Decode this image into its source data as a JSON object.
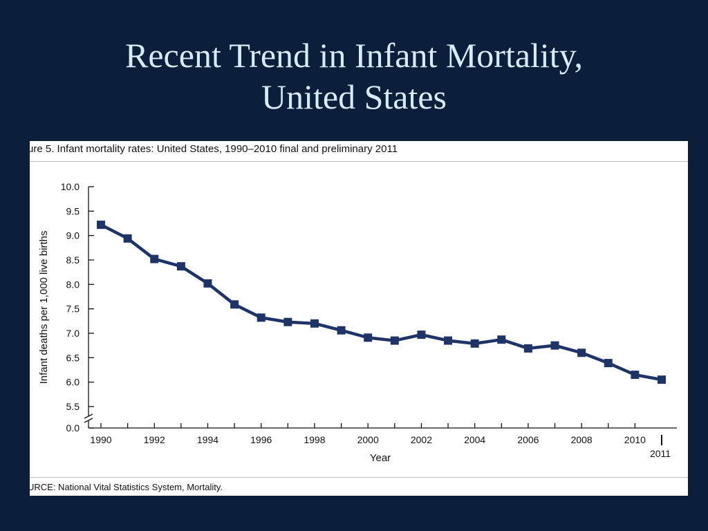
{
  "slide": {
    "title_line1": "Recent Trend in Infant Mortality,",
    "title_line2": "United States"
  },
  "figure": {
    "caption": "ure 5. Infant mortality rates: United States, 1990–2010 final and preliminary 2011",
    "source": "URCE: National Vital Statistics System, Mortality."
  },
  "chart_data": {
    "type": "line",
    "xlabel": "Year",
    "ylabel": "Infant deaths per 1,000 live births",
    "x": [
      1990,
      1991,
      1992,
      1993,
      1994,
      1995,
      1996,
      1997,
      1998,
      1999,
      2000,
      2001,
      2002,
      2003,
      2004,
      2005,
      2006,
      2007,
      2008,
      2009,
      2010,
      2011
    ],
    "series": [
      {
        "values": [
          9.22,
          8.94,
          8.52,
          8.37,
          8.02,
          7.59,
          7.32,
          7.23,
          7.2,
          7.06,
          6.91,
          6.85,
          6.97,
          6.85,
          6.79,
          6.87,
          6.69,
          6.75,
          6.6,
          6.39,
          6.15,
          6.05
        ],
        "color": "#1f3466"
      }
    ],
    "x_tick_labels": [
      "1990",
      "1992",
      "1994",
      "1996",
      "1998",
      "2000",
      "2002",
      "2004",
      "2006",
      "2008",
      "2010"
    ],
    "x_extra_label": "2011",
    "y_tick_labels": [
      "0.0",
      "5.5",
      "6.0",
      "6.5",
      "7.0",
      "7.5",
      "8.0",
      "8.5",
      "9.0",
      "9.5",
      "10.0"
    ],
    "ylim": [
      5.5,
      10.0
    ],
    "y_axis_break": true,
    "grid": false
  }
}
